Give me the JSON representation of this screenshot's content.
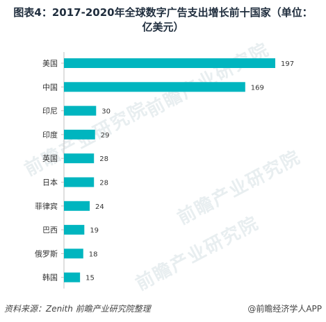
{
  "title": {
    "line1": "图表4：2017-2020年全球数字广告支出增长前十国家（单位：",
    "line2": "亿美元）"
  },
  "watermark": "前瞻产业研究院",
  "chart_data": {
    "type": "bar",
    "orientation": "horizontal",
    "categories": [
      "美国",
      "中国",
      "印尼",
      "印度",
      "英国",
      "日本",
      "菲律宾",
      "巴西",
      "俄罗斯",
      "韩国"
    ],
    "values": [
      197,
      169,
      30,
      29,
      28,
      28,
      24,
      19,
      18,
      15
    ],
    "bar_color": "#00b5bf",
    "xlim": [
      0,
      197
    ],
    "grid": false,
    "legend": "none"
  },
  "footer": {
    "source": "资料来源：Zenith 前瞻产业研究院整理",
    "brand": "@前瞻经济学人APP"
  }
}
